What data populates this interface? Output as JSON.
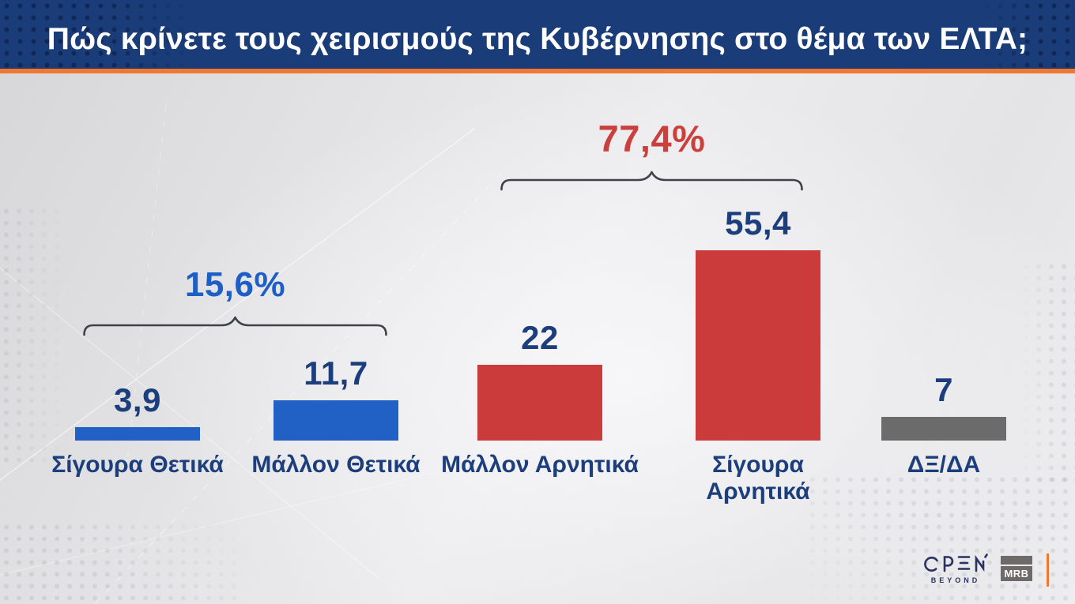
{
  "header": {
    "title": "Πώς κρίνετε τους χειρισμούς της Κυβέρνησης στο θέμα των ΕΛΤΑ;"
  },
  "chart_data": {
    "type": "bar",
    "title": "Πώς κρίνετε τους χειρισμούς της Κυβέρνησης στο θέμα των ΕΛΤΑ;",
    "categories": [
      "Σίγουρα Θετικά",
      "Μάλλον Θετικά",
      "Μάλλον Αρνητικά",
      "Σίγουρα Αρνητικά",
      "ΔΞ/ΔΑ"
    ],
    "values": [
      3.9,
      11.7,
      22,
      55.4,
      7
    ],
    "value_labels": [
      "3,9",
      "11,7",
      "22",
      "55,4",
      "7"
    ],
    "bar_colors": [
      "#2161c6",
      "#2161c6",
      "#cc3b3b",
      "#cc3b3b",
      "#6b6b6b"
    ],
    "value_label_color": "#1c3e7c",
    "category_label_color": "#1c3e7c",
    "groups": [
      {
        "label": "15,6%",
        "color": "#1d5fc6",
        "members": [
          0,
          1
        ]
      },
      {
        "label": "77,4%",
        "color": "#c9403c",
        "members": [
          2,
          3
        ]
      }
    ],
    "bracket_color": "#3d424d",
    "ylim": [
      0,
      60
    ],
    "grid": false,
    "legend": false,
    "orientation": "vertical"
  },
  "footer": {
    "open_brand": "OPEN",
    "open_sub": "BEYOND",
    "mrb_label": "MRB"
  },
  "colors": {
    "header_bg": "#1a3d7a",
    "accent_orange": "#f0782f",
    "logo_navy": "#2b3162"
  }
}
